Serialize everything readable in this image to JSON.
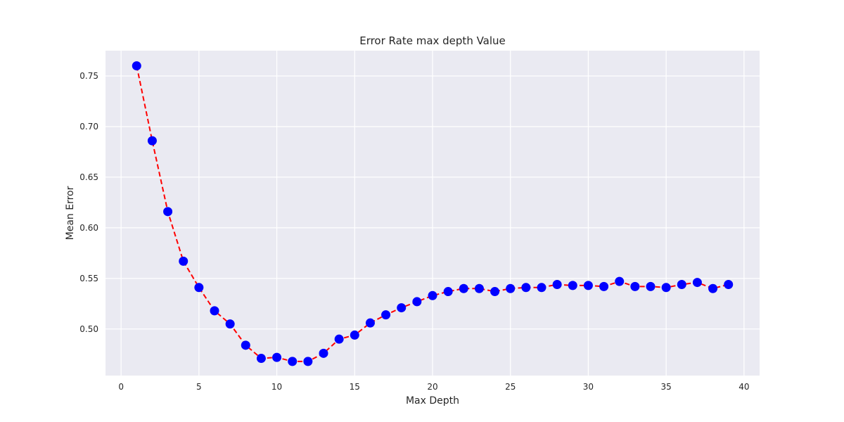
{
  "chart_data": {
    "type": "line",
    "title": "Error Rate max depth Value",
    "xlabel": "Max Depth",
    "ylabel": "Mean Error",
    "xlim": [
      -1,
      41
    ],
    "ylim": [
      0.454,
      0.775
    ],
    "xticks": [
      0,
      5,
      10,
      15,
      20,
      25,
      30,
      35,
      40
    ],
    "yticks": [
      0.5,
      0.55,
      0.6,
      0.65,
      0.7,
      0.75
    ],
    "xtick_labels": [
      "0",
      "5",
      "10",
      "15",
      "20",
      "25",
      "30",
      "35",
      "40"
    ],
    "ytick_labels": [
      "0.50",
      "0.55",
      "0.60",
      "0.65",
      "0.70",
      "0.75"
    ],
    "grid": true,
    "line_style": "dashed",
    "line_color": "#ff0000",
    "marker_color": "#0000ff",
    "background_color": "#eaeaf2",
    "grid_color": "#ffffff",
    "series": [
      {
        "x": [
          1,
          2,
          3,
          4,
          5,
          6,
          7,
          8,
          9,
          10,
          11,
          12,
          13,
          14,
          15,
          16,
          17,
          18,
          19,
          20,
          21,
          22,
          23,
          24,
          25,
          26,
          27,
          28,
          29,
          30,
          31,
          32,
          33,
          34,
          35,
          36,
          37,
          38,
          39
        ],
        "values": [
          0.76,
          0.686,
          0.616,
          0.567,
          0.541,
          0.518,
          0.505,
          0.484,
          0.471,
          0.472,
          0.468,
          0.468,
          0.476,
          0.49,
          0.494,
          0.506,
          0.514,
          0.521,
          0.527,
          0.533,
          0.537,
          0.54,
          0.54,
          0.537,
          0.54,
          0.541,
          0.541,
          0.544,
          0.543,
          0.543,
          0.542,
          0.547,
          0.542,
          0.542,
          0.541,
          0.544,
          0.546,
          0.54,
          0.544
        ]
      }
    ]
  }
}
